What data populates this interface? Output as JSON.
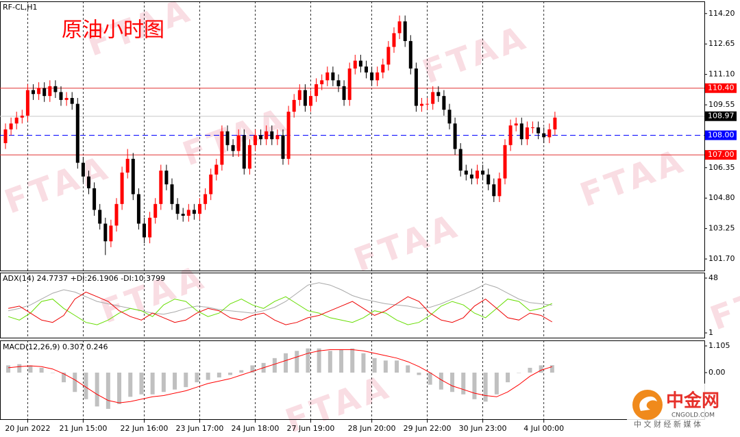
{
  "chart_data": [
    {
      "type": "candlestick",
      "title": "RF-CL,H1",
      "annotation": "原油小时图",
      "watermark": "FTAA",
      "categories": [
        null,
        null,
        null,
        null,
        "20 Jun 2022",
        null,
        null,
        null,
        null,
        null,
        null,
        null,
        null,
        null,
        "21 Jun 15:00",
        null,
        null,
        null,
        null,
        null,
        null,
        null,
        null,
        null,
        null,
        "22 Jun 16:00",
        null,
        null,
        null,
        null,
        null,
        null,
        null,
        null,
        null,
        "23 Jun 17:00",
        null,
        null,
        null,
        null,
        null,
        null,
        null,
        null,
        null,
        "24 Jun 18:00",
        null,
        null,
        null,
        null,
        null,
        null,
        null,
        null,
        null,
        "27 Jun 19:00",
        null,
        null,
        null,
        null,
        null,
        null,
        null,
        null,
        null,
        null,
        "28 Jun 20:00",
        null,
        null,
        null,
        null,
        null,
        null,
        null,
        null,
        null,
        "29 Jun 22:00",
        null,
        null,
        null,
        null,
        null,
        null,
        null,
        null,
        null,
        "30 Jun 23:00",
        null,
        null,
        null,
        null,
        null,
        null,
        null,
        null,
        null,
        null,
        "4 Jul 00:00",
        null,
        null
      ],
      "open": [
        107.6,
        108.3,
        108.6,
        108.9,
        109.0,
        110.3,
        110.1,
        110.4,
        110.0,
        110.5,
        110.2,
        109.8,
        109.9,
        109.6,
        106.6,
        105.9,
        105.3,
        104.2,
        103.5,
        102.6,
        103.4,
        104.5,
        106.1,
        106.8,
        105.0,
        103.5,
        102.8,
        103.8,
        104.5,
        106.2,
        105.5,
        104.5,
        104.0,
        103.9,
        104.2,
        104.0,
        104.5,
        105.0,
        106.0,
        106.5,
        108.2,
        107.5,
        107.2,
        108.0,
        106.3,
        107.5,
        108.0,
        107.8,
        108.2,
        107.8,
        108.0,
        106.8,
        109.2,
        109.8,
        110.3,
        109.5,
        110.0,
        110.6,
        110.8,
        111.2,
        110.8,
        110.5,
        109.8,
        111.4,
        111.8,
        111.5,
        111.2,
        110.8,
        111.2,
        111.6,
        112.5,
        113.2,
        113.8,
        112.8,
        111.4,
        109.5,
        109.6,
        109.6,
        110.2,
        110.0,
        109.3,
        108.6,
        107.3,
        106.2,
        106.0,
        105.8,
        106.2,
        106.0,
        105.5,
        104.9,
        105.8,
        107.5,
        108.5,
        108.6,
        107.8,
        108.4,
        108.4,
        108.1,
        107.9,
        108.3
      ],
      "high": [
        108.6,
        108.9,
        109.2,
        109.3,
        110.6,
        110.6,
        110.7,
        110.7,
        110.8,
        110.8,
        110.5,
        110.2,
        110.2,
        109.9,
        106.9,
        106.2,
        105.6,
        104.5,
        103.8,
        103.7,
        104.8,
        106.4,
        107.3,
        107.1,
        105.3,
        103.8,
        104.1,
        104.8,
        106.5,
        106.5,
        105.8,
        104.8,
        104.3,
        104.5,
        104.5,
        104.8,
        105.3,
        106.3,
        106.8,
        108.5,
        108.5,
        107.8,
        108.3,
        108.3,
        107.8,
        108.3,
        108.3,
        108.5,
        108.5,
        108.3,
        108.3,
        109.5,
        110.1,
        110.6,
        110.6,
        110.3,
        110.9,
        111.1,
        111.5,
        111.5,
        111.1,
        110.8,
        111.7,
        112.1,
        112.1,
        111.8,
        111.5,
        111.5,
        111.9,
        112.8,
        113.5,
        114.1,
        114.1,
        113.1,
        111.7,
        109.9,
        109.9,
        110.5,
        110.5,
        110.3,
        109.6,
        108.9,
        107.6,
        106.5,
        106.3,
        106.5,
        106.5,
        106.3,
        105.8,
        106.1,
        107.8,
        108.8,
        108.9,
        108.9,
        108.7,
        108.7,
        108.7,
        108.4,
        108.6,
        109.2
      ],
      "low": [
        107.3,
        108.0,
        108.3,
        108.6,
        108.7,
        109.8,
        109.8,
        109.7,
        109.7,
        109.9,
        109.5,
        109.5,
        109.3,
        106.3,
        105.6,
        105.0,
        103.9,
        103.2,
        101.9,
        102.3,
        103.1,
        104.2,
        105.8,
        104.7,
        103.2,
        102.5,
        102.5,
        103.5,
        104.2,
        105.2,
        104.2,
        103.7,
        103.6,
        103.6,
        103.7,
        103.7,
        104.2,
        104.7,
        105.7,
        106.2,
        107.2,
        106.9,
        106.9,
        106.0,
        106.0,
        107.2,
        107.5,
        107.5,
        107.5,
        107.5,
        106.5,
        106.5,
        108.9,
        109.5,
        109.2,
        109.2,
        109.7,
        110.3,
        110.5,
        110.5,
        110.2,
        109.5,
        109.5,
        111.1,
        111.2,
        110.9,
        110.5,
        110.5,
        110.9,
        111.3,
        112.2,
        112.9,
        112.5,
        111.1,
        109.2,
        109.2,
        109.3,
        109.3,
        109.7,
        109.0,
        108.3,
        107.0,
        105.9,
        105.7,
        105.5,
        105.5,
        105.7,
        105.2,
        104.6,
        104.6,
        105.5,
        107.2,
        108.2,
        107.5,
        107.5,
        108.1,
        107.8,
        107.6,
        107.6,
        108.0
      ],
      "close": [
        108.3,
        108.6,
        108.9,
        109.0,
        110.3,
        110.1,
        110.4,
        110.0,
        110.5,
        110.2,
        109.8,
        109.9,
        109.6,
        106.6,
        105.9,
        105.3,
        104.2,
        103.5,
        102.6,
        103.4,
        104.5,
        106.1,
        106.8,
        105.0,
        103.5,
        102.8,
        103.8,
        104.5,
        106.2,
        105.5,
        104.5,
        104.0,
        103.9,
        104.2,
        104.0,
        104.5,
        105.0,
        106.0,
        106.5,
        108.2,
        107.5,
        107.2,
        108.0,
        106.3,
        107.5,
        108.0,
        107.8,
        108.2,
        107.8,
        108.0,
        106.8,
        109.2,
        109.8,
        110.3,
        109.5,
        110.0,
        110.6,
        110.8,
        111.2,
        110.8,
        110.5,
        109.8,
        111.4,
        111.8,
        111.5,
        111.2,
        110.8,
        111.2,
        111.6,
        112.5,
        113.2,
        113.8,
        112.8,
        111.4,
        109.5,
        109.6,
        109.6,
        110.2,
        110.0,
        109.3,
        108.6,
        107.3,
        106.2,
        106.0,
        105.8,
        106.2,
        106.0,
        105.5,
        104.9,
        105.8,
        107.5,
        108.5,
        108.6,
        107.8,
        108.4,
        108.4,
        108.1,
        107.9,
        108.3,
        108.9
      ],
      "up_color": "#ff0000",
      "down_color": "#000000",
      "ylim": [
        101.11,
        114.82
      ],
      "yticks": [
        {
          "value": 101.7,
          "label": "101.70"
        },
        {
          "value": 103.25,
          "label": "103.25"
        },
        {
          "value": 104.8,
          "label": "104.80"
        },
        {
          "value": 106.35,
          "label": "106.35"
        },
        {
          "value": 109.55,
          "label": "109.55"
        },
        {
          "value": 111.1,
          "label": "111.10"
        },
        {
          "value": 112.65,
          "label": "112.65"
        },
        {
          "value": 114.2,
          "label": "114.20"
        }
      ],
      "levels": [
        {
          "value": 110.4,
          "label": "110.40",
          "color": "#e03030",
          "label_fill": "#ff0000",
          "dashed": false
        },
        {
          "value": 108.97,
          "label": "108.97",
          "color": "#c8c8c8",
          "label_fill": "#000000",
          "dashed": false
        },
        {
          "value": 108,
          "label": "108.00",
          "color": "#0000ff",
          "label_fill": "#0000ff",
          "dashed": true
        },
        {
          "value": 107,
          "label": "107.00",
          "color": "#e03030",
          "label_fill": "#ff0000",
          "dashed": false
        }
      ]
    },
    {
      "type": "line",
      "title": "ADX(14) 24.7737 +DI:26.1906 -DI:10.3799",
      "ylim": [
        -3.1,
        52.7
      ],
      "yticks": [
        1,
        48
      ],
      "lines": [
        {
          "color": "#a8a8a8",
          "values": [
            20,
            22,
            25,
            30,
            35,
            38,
            36,
            32,
            28,
            26,
            24,
            22,
            20,
            18,
            17,
            19,
            22,
            24,
            23,
            21,
            20,
            19,
            18,
            20,
            23,
            28,
            35,
            42,
            44,
            42,
            38,
            33,
            30,
            28,
            26,
            25,
            24,
            22,
            23,
            26,
            30,
            34,
            38,
            43,
            40,
            35,
            30,
            27,
            26,
            24.8
          ]
        },
        {
          "color": "#66dd00",
          "values": [
            15,
            12,
            18,
            28,
            30,
            22,
            16,
            10,
            8,
            12,
            18,
            22,
            20,
            15,
            25,
            30,
            28,
            20,
            15,
            18,
            26,
            30,
            25,
            22,
            28,
            32,
            26,
            20,
            18,
            14,
            12,
            10,
            14,
            20,
            18,
            12,
            8,
            10,
            16,
            24,
            28,
            25,
            18,
            14,
            22,
            30,
            28,
            20,
            22,
            26.2
          ]
        },
        {
          "color": "#ee0000",
          "values": [
            22,
            24,
            18,
            12,
            10,
            16,
            30,
            36,
            32,
            28,
            20,
            15,
            12,
            18,
            14,
            10,
            12,
            18,
            22,
            20,
            14,
            12,
            16,
            18,
            12,
            8,
            10,
            14,
            16,
            20,
            24,
            28,
            22,
            16,
            20,
            26,
            32,
            28,
            18,
            12,
            10,
            14,
            24,
            30,
            22,
            14,
            12,
            18,
            16,
            10.4
          ]
        }
      ]
    },
    {
      "type": "macd",
      "title": "MACD(12,26,9) 0.307 0.246",
      "ylim": [
        -1.927,
        1.332
      ],
      "yticks": [
        {
          "value": 0,
          "label": "0.00"
        },
        1.105
      ],
      "histogram": {
        "color": "#c0c0c0",
        "values": [
          0.3,
          0.35,
          0.3,
          0.2,
          0.0,
          -0.4,
          -0.8,
          -1.1,
          -1.4,
          -1.5,
          -1.3,
          -1.0,
          -0.9,
          -0.9,
          -0.8,
          -0.7,
          -0.6,
          -0.4,
          -0.3,
          -0.2,
          -0.1,
          0.1,
          0.3,
          0.4,
          0.6,
          0.8,
          0.9,
          1.0,
          1.0,
          0.9,
          0.95,
          1.0,
          0.8,
          0.6,
          0.5,
          0.5,
          0.3,
          -0.1,
          -0.5,
          -0.7,
          -0.8,
          -0.9,
          -1.1,
          -1.2,
          -0.9,
          -0.4,
          0.0,
          0.2,
          0.3,
          0.307
        ]
      },
      "signal": {
        "color": "#ff0000",
        "values": [
          0.2,
          0.25,
          0.28,
          0.25,
          0.15,
          -0.05,
          -0.3,
          -0.6,
          -0.9,
          -1.15,
          -1.25,
          -1.2,
          -1.1,
          -1.0,
          -0.95,
          -0.85,
          -0.75,
          -0.6,
          -0.45,
          -0.35,
          -0.25,
          -0.1,
          0.05,
          0.2,
          0.35,
          0.5,
          0.65,
          0.8,
          0.9,
          0.95,
          0.95,
          0.95,
          0.9,
          0.8,
          0.7,
          0.6,
          0.45,
          0.25,
          0.0,
          -0.3,
          -0.55,
          -0.7,
          -0.85,
          -0.95,
          -1.0,
          -0.8,
          -0.5,
          -0.15,
          0.1,
          0.246
        ]
      }
    }
  ],
  "logo": {
    "name": "中金网",
    "site": "CNGOLD.COM",
    "slogan": "中 文 财 经 新 媒 体"
  }
}
